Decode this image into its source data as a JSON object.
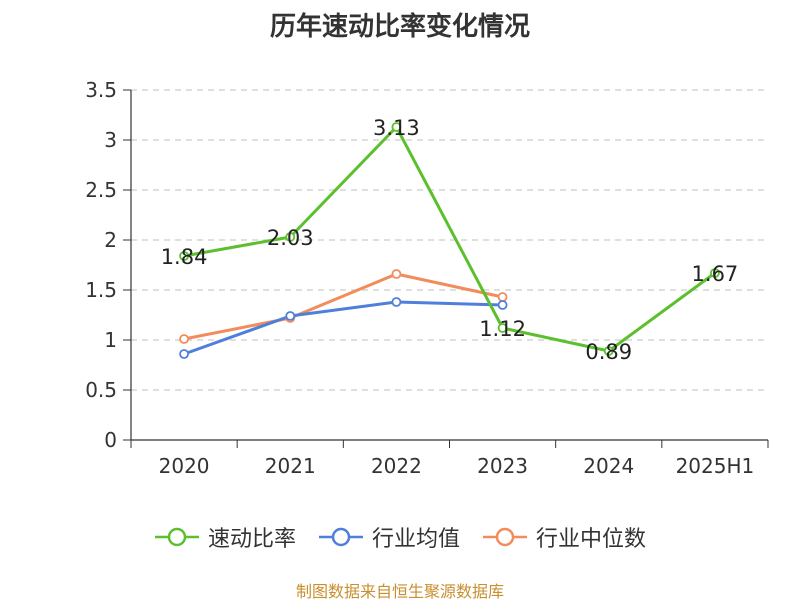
{
  "chart_data": {
    "type": "line",
    "title": "历年速动比率变化情况",
    "categories": [
      "2020",
      "2021",
      "2022",
      "2023",
      "2024",
      "2025H1"
    ],
    "ylim": [
      0,
      3.5
    ],
    "yticks": [
      "0",
      "0.5",
      "1",
      "1.5",
      "2",
      "2.5",
      "3",
      "3.5"
    ],
    "grid": true,
    "legend_position": "bottom",
    "series": [
      {
        "name": "速动比率",
        "color": "#5cc02e",
        "values": [
          1.84,
          2.03,
          3.13,
          1.12,
          0.89,
          1.67
        ],
        "labels": [
          "1.84",
          "2.03",
          "3.13",
          "1.12",
          "0.89",
          "1.67"
        ]
      },
      {
        "name": "行业均值",
        "color": "#4f7fdc",
        "values": [
          0.86,
          1.24,
          1.38,
          1.35,
          null,
          null
        ]
      },
      {
        "name": "行业中位数",
        "color": "#f28c5a",
        "values": [
          1.01,
          1.22,
          1.66,
          1.43,
          null,
          null
        ]
      }
    ]
  },
  "source": "制图数据来自恒生聚源数据库"
}
